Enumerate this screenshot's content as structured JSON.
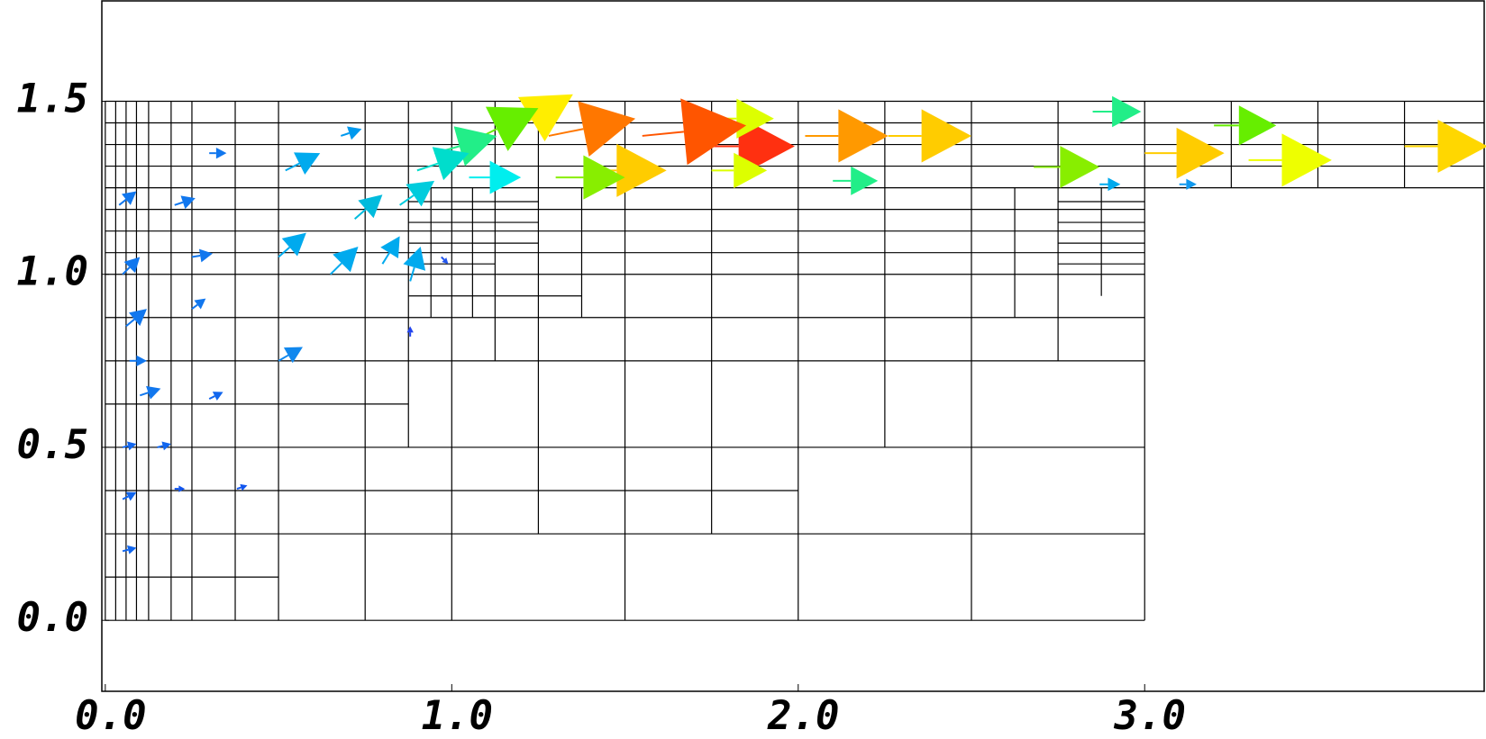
{
  "chart_data": {
    "type": "quiver",
    "xlim": [
      -0.01,
      3.98
    ],
    "ylim": [
      -0.205,
      1.79
    ],
    "xticks": [
      {
        "value": 0,
        "label": "0.0"
      },
      {
        "value": 1,
        "label": "1.0"
      },
      {
        "value": 2,
        "label": "2.0"
      },
      {
        "value": 3,
        "label": "3.0"
      }
    ],
    "yticks": [
      {
        "value": 0,
        "label": "0.0"
      },
      {
        "value": 0.5,
        "label": "0.5"
      },
      {
        "value": 1,
        "label": "1.0"
      },
      {
        "value": 1.5,
        "label": "1.5"
      }
    ],
    "mesh_color": "#000000",
    "mesh_h": [
      [
        0,
        0,
        3
      ],
      [
        0.125,
        0,
        0.5
      ],
      [
        0.25,
        0,
        3
      ],
      [
        0.375,
        0,
        2
      ],
      [
        0.5,
        0,
        3
      ],
      [
        0.625,
        0,
        0.875
      ],
      [
        0.75,
        0,
        3
      ],
      [
        0.875,
        0,
        3
      ],
      [
        0.9375,
        0.875,
        1.375
      ],
      [
        1.0,
        0,
        3
      ],
      [
        1.03,
        0.875,
        1.125
      ],
      [
        1.0625,
        0,
        3
      ],
      [
        1.09,
        0.875,
        1.25
      ],
      [
        1.125,
        0,
        3
      ],
      [
        1.15,
        0.875,
        1.25
      ],
      [
        1.1875,
        0,
        3
      ],
      [
        1.21,
        0.875,
        1.25
      ],
      [
        1.25,
        0,
        3.98
      ],
      [
        1.3125,
        0,
        3.98
      ],
      [
        1.375,
        0,
        3.98
      ],
      [
        1.4375,
        0,
        3.98
      ],
      [
        1.5,
        0,
        3.98
      ],
      [
        1.03,
        2.75,
        3
      ],
      [
        1.09,
        2.75,
        3
      ],
      [
        1.15,
        2.75,
        3
      ],
      [
        1.21,
        2.75,
        3
      ]
    ],
    "mesh_v": [
      [
        0,
        0,
        1.5
      ],
      [
        0.03,
        0,
        1.5
      ],
      [
        0.06,
        0,
        1.5
      ],
      [
        0.09,
        0,
        1.5
      ],
      [
        0.125,
        0,
        1.5
      ],
      [
        0.19,
        0,
        1.5
      ],
      [
        0.25,
        0,
        1.5
      ],
      [
        0.375,
        0,
        1.5
      ],
      [
        0.5,
        0,
        1.5
      ],
      [
        0.75,
        0,
        1.5
      ],
      [
        0.875,
        0.5,
        1.5
      ],
      [
        0.94,
        0.875,
        1.25
      ],
      [
        1.0,
        0,
        1.5
      ],
      [
        1.06,
        0.875,
        1.25
      ],
      [
        1.125,
        0.75,
        1.5
      ],
      [
        1.25,
        0.25,
        1.5
      ],
      [
        1.375,
        0.875,
        1.25
      ],
      [
        1.5,
        0,
        1.5
      ],
      [
        1.75,
        0.25,
        1.5
      ],
      [
        2.0,
        0,
        1.5
      ],
      [
        2.25,
        0.5,
        1.5
      ],
      [
        2.5,
        0,
        1.5
      ],
      [
        2.625,
        0.875,
        1.25
      ],
      [
        2.75,
        0.75,
        1.5
      ],
      [
        2.875,
        0.9375,
        1.25
      ],
      [
        3.0,
        0,
        1.5
      ],
      [
        3.25,
        1.25,
        1.5
      ],
      [
        3.5,
        1.25,
        1.5
      ],
      [
        3.75,
        1.25,
        1.5
      ]
    ],
    "arrows": {
      "x": [
        1.72,
        1.38,
        2.02,
        2.26,
        3.75,
        3.0,
        3.2,
        3.3,
        2.68,
        2.85,
        2.1,
        1.75,
        1.75,
        1.3,
        1.55,
        1.28,
        1.15,
        1.05,
        0.95,
        0.9,
        1.05,
        0.85,
        0.72,
        0.5,
        0.65,
        0.8,
        0.88,
        0.5,
        0.52,
        0.68,
        0.04,
        0.05,
        0.06,
        0.07,
        0.1,
        0.05,
        0.05,
        0.05,
        0.2,
        0.25,
        0.25,
        0.3,
        0.15,
        0.2,
        0.38,
        0.3,
        0.97,
        0.88,
        3.1,
        2.87
      ],
      "y": [
        1.37,
        1.3,
        1.4,
        1.4,
        1.37,
        1.35,
        1.43,
        1.33,
        1.31,
        1.47,
        1.27,
        1.3,
        1.45,
        1.28,
        1.4,
        1.4,
        1.4,
        1.38,
        1.35,
        1.3,
        1.28,
        1.2,
        1.16,
        1.05,
        1.0,
        1.03,
        0.98,
        0.75,
        1.3,
        1.4,
        1.2,
        1.0,
        0.85,
        0.75,
        0.65,
        0.5,
        0.35,
        0.2,
        1.2,
        1.05,
        0.9,
        1.35,
        0.5,
        0.38,
        0.38,
        0.64,
        1.05,
        0.82,
        1.26,
        1.26
      ],
      "u": [
        0.27,
        0.24,
        0.24,
        0.24,
        0.24,
        0.23,
        0.18,
        0.24,
        0.19,
        0.14,
        0.13,
        0.16,
        0.18,
        0.2,
        0.3,
        0.25,
        0.2,
        0.2,
        0.18,
        0.15,
        0.15,
        0.1,
        0.08,
        0.08,
        0.08,
        0.05,
        0.03,
        0.07,
        0.1,
        0.06,
        0.05,
        0.05,
        0.06,
        0.05,
        0.06,
        0.04,
        0.04,
        0.04,
        0.06,
        0.06,
        0.04,
        0.05,
        0.04,
        0.03,
        0.03,
        0.04,
        0.02,
        0,
        0.05,
        0.06
      ],
      "v": [
        0,
        0,
        0,
        0,
        0,
        0,
        0,
        0,
        0,
        0,
        0,
        0,
        0,
        0,
        0.03,
        0.05,
        0.12,
        0.1,
        0.05,
        0.05,
        0,
        0.07,
        0.07,
        0.07,
        0.08,
        0.08,
        0.1,
        0.04,
        0.05,
        0.02,
        0.04,
        0.05,
        0.05,
        0,
        0.02,
        0.01,
        0.02,
        0.01,
        0.02,
        0.01,
        0.03,
        0,
        0.01,
        0,
        0.01,
        0.02,
        -0.02,
        0.03,
        0,
        0
      ],
      "colors": [
        "#ff3010",
        "#ffcc00",
        "#ff9900",
        "#ffcc00",
        "#ffd700",
        "#ffcc00",
        "#66ee00",
        "#eeff00",
        "#88ee00",
        "#22ee88",
        "#22ee88",
        "#ddff00",
        "#ddff00",
        "#88ee00",
        "#ff5500",
        "#ff7700",
        "#ffee00",
        "#66ee00",
        "#22ee88",
        "#00ddcc",
        "#00eeee",
        "#00ccdd",
        "#00bbdd",
        "#00aaee",
        "#00aaee",
        "#00aaee",
        "#00aaee",
        "#1188ee",
        "#00aaee",
        "#0099ee",
        "#1177ee",
        "#1177ee",
        "#1177ee",
        "#1177ee",
        "#1177ee",
        "#1166ee",
        "#1166ee",
        "#1166ee",
        "#1177ee",
        "#1177ee",
        "#1177ee",
        "#1177ee",
        "#1166ee",
        "#1155ee",
        "#1155ee",
        "#1166ee",
        "#2255ee",
        "#2244ee",
        "#1199ee",
        "#00aaee"
      ]
    }
  }
}
